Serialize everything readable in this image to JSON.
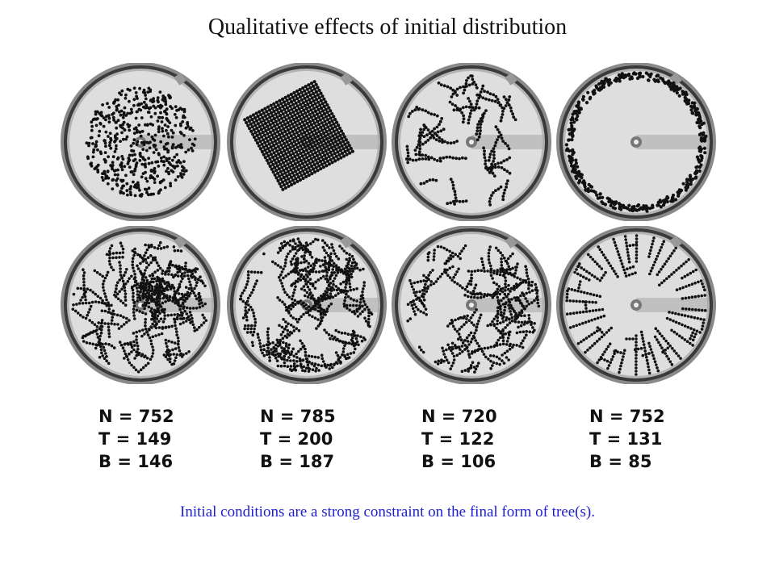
{
  "title": "Qualitative effects of initial distribution",
  "dishes": [
    {
      "row": 1,
      "col": 1,
      "depicts": "petri-dish-scattered-disc"
    },
    {
      "row": 1,
      "col": 2,
      "depicts": "petri-dish-square-lattice"
    },
    {
      "row": 1,
      "col": 3,
      "depicts": "petri-dish-uniform-chains"
    },
    {
      "row": 1,
      "col": 4,
      "depicts": "petri-dish-edge-ring"
    },
    {
      "row": 2,
      "col": 1,
      "depicts": "petri-dish-tree-dense"
    },
    {
      "row": 2,
      "col": 2,
      "depicts": "petri-dish-tree-branching"
    },
    {
      "row": 2,
      "col": 3,
      "depicts": "petri-dish-tree-loops"
    },
    {
      "row": 2,
      "col": 4,
      "depicts": "petri-dish-tree-radial"
    }
  ],
  "stats": [
    {
      "n": "N = 752",
      "t": "T = 149",
      "b": "B = 146"
    },
    {
      "n": "N = 785",
      "t": "T = 200",
      "b": "B = 187"
    },
    {
      "n": "N = 720",
      "t": "T = 122",
      "b": "B = 106"
    },
    {
      "n": "N = 752",
      "t": "T = 131",
      "b": "B = 85"
    }
  ],
  "caption": "Initial conditions are a strong constraint on the final form of tree(s)."
}
